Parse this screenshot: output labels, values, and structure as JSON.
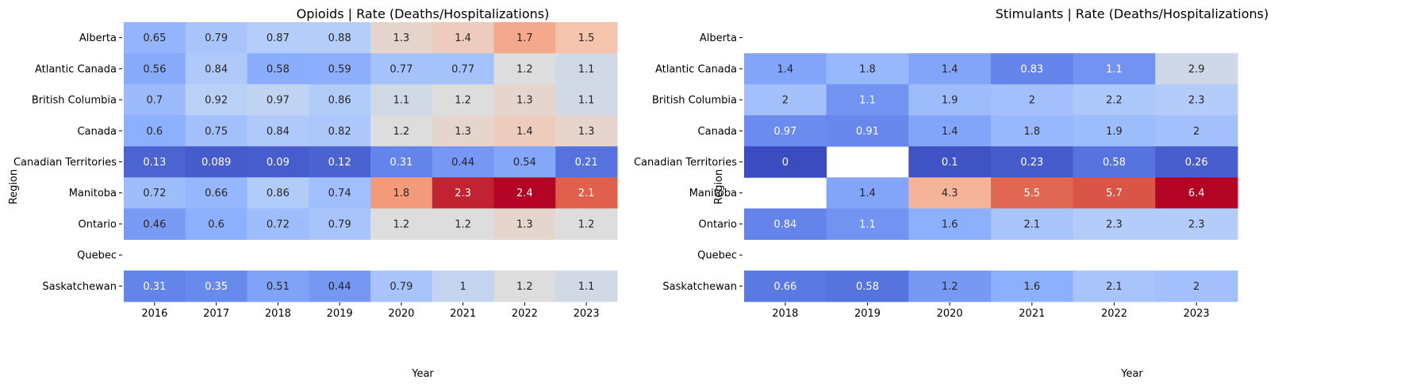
{
  "chart_data": [
    {
      "type": "heatmap",
      "title": "Opioids | Rate (Deaths/Hospitalizations)",
      "xlabel": "Year",
      "ylabel": "Region",
      "colormap": "coolwarm",
      "color_range": [
        0,
        2.4
      ],
      "x": [
        "2016",
        "2017",
        "2018",
        "2019",
        "2020",
        "2021",
        "2022",
        "2023"
      ],
      "y": [
        "Alberta",
        "Atlantic Canada",
        "British Columbia",
        "Canada",
        "Canadian Territories",
        "Manitoba",
        "Ontario",
        "Quebec",
        "Saskatchewan"
      ],
      "values": [
        [
          0.65,
          0.79,
          0.87,
          0.88,
          1.3,
          1.4,
          1.7,
          1.5
        ],
        [
          0.56,
          0.84,
          0.58,
          0.59,
          0.77,
          0.77,
          1.2,
          1.1
        ],
        [
          0.7,
          0.92,
          0.97,
          0.86,
          1.1,
          1.2,
          1.3,
          1.1
        ],
        [
          0.6,
          0.75,
          0.84,
          0.82,
          1.2,
          1.3,
          1.4,
          1.3
        ],
        [
          0.13,
          0.089,
          0.09,
          0.12,
          0.31,
          0.44,
          0.54,
          0.21
        ],
        [
          0.72,
          0.66,
          0.86,
          0.74,
          1.8,
          2.3,
          2.4,
          2.1
        ],
        [
          0.46,
          0.6,
          0.72,
          0.79,
          1.2,
          1.2,
          1.3,
          1.2
        ],
        [
          null,
          null,
          null,
          null,
          null,
          null,
          null,
          null
        ],
        [
          0.31,
          0.35,
          0.51,
          0.44,
          0.79,
          1,
          1.2,
          1.1
        ]
      ]
    },
    {
      "type": "heatmap",
      "title": "Stimulants | Rate (Deaths/Hospitalizations)",
      "xlabel": "Year",
      "ylabel": "Region",
      "colormap": "coolwarm",
      "color_range": [
        0,
        6.4
      ],
      "x": [
        "2018",
        "2019",
        "2020",
        "2021",
        "2022",
        "2023"
      ],
      "y": [
        "Alberta",
        "Atlantic Canada",
        "British Columbia",
        "Canada",
        "Canadian Territories",
        "Manitoba",
        "Ontario",
        "Quebec",
        "Saskatchewan"
      ],
      "values": [
        [
          null,
          null,
          null,
          null,
          null,
          null
        ],
        [
          1.4,
          1.8,
          1.4,
          0.83,
          1.1,
          2.9
        ],
        [
          2,
          1.1,
          1.9,
          2,
          2.2,
          2.3
        ],
        [
          0.97,
          0.91,
          1.4,
          1.8,
          1.9,
          2
        ],
        [
          0,
          null,
          0.1,
          0.23,
          0.58,
          0.26
        ],
        [
          null,
          1.4,
          4.3,
          5.5,
          5.7,
          6.4
        ],
        [
          0.84,
          1.1,
          1.6,
          2.1,
          2.3,
          2.3
        ],
        [
          null,
          null,
          null,
          null,
          null,
          null
        ],
        [
          0.66,
          0.58,
          1.2,
          1.6,
          2.1,
          2
        ]
      ]
    }
  ]
}
